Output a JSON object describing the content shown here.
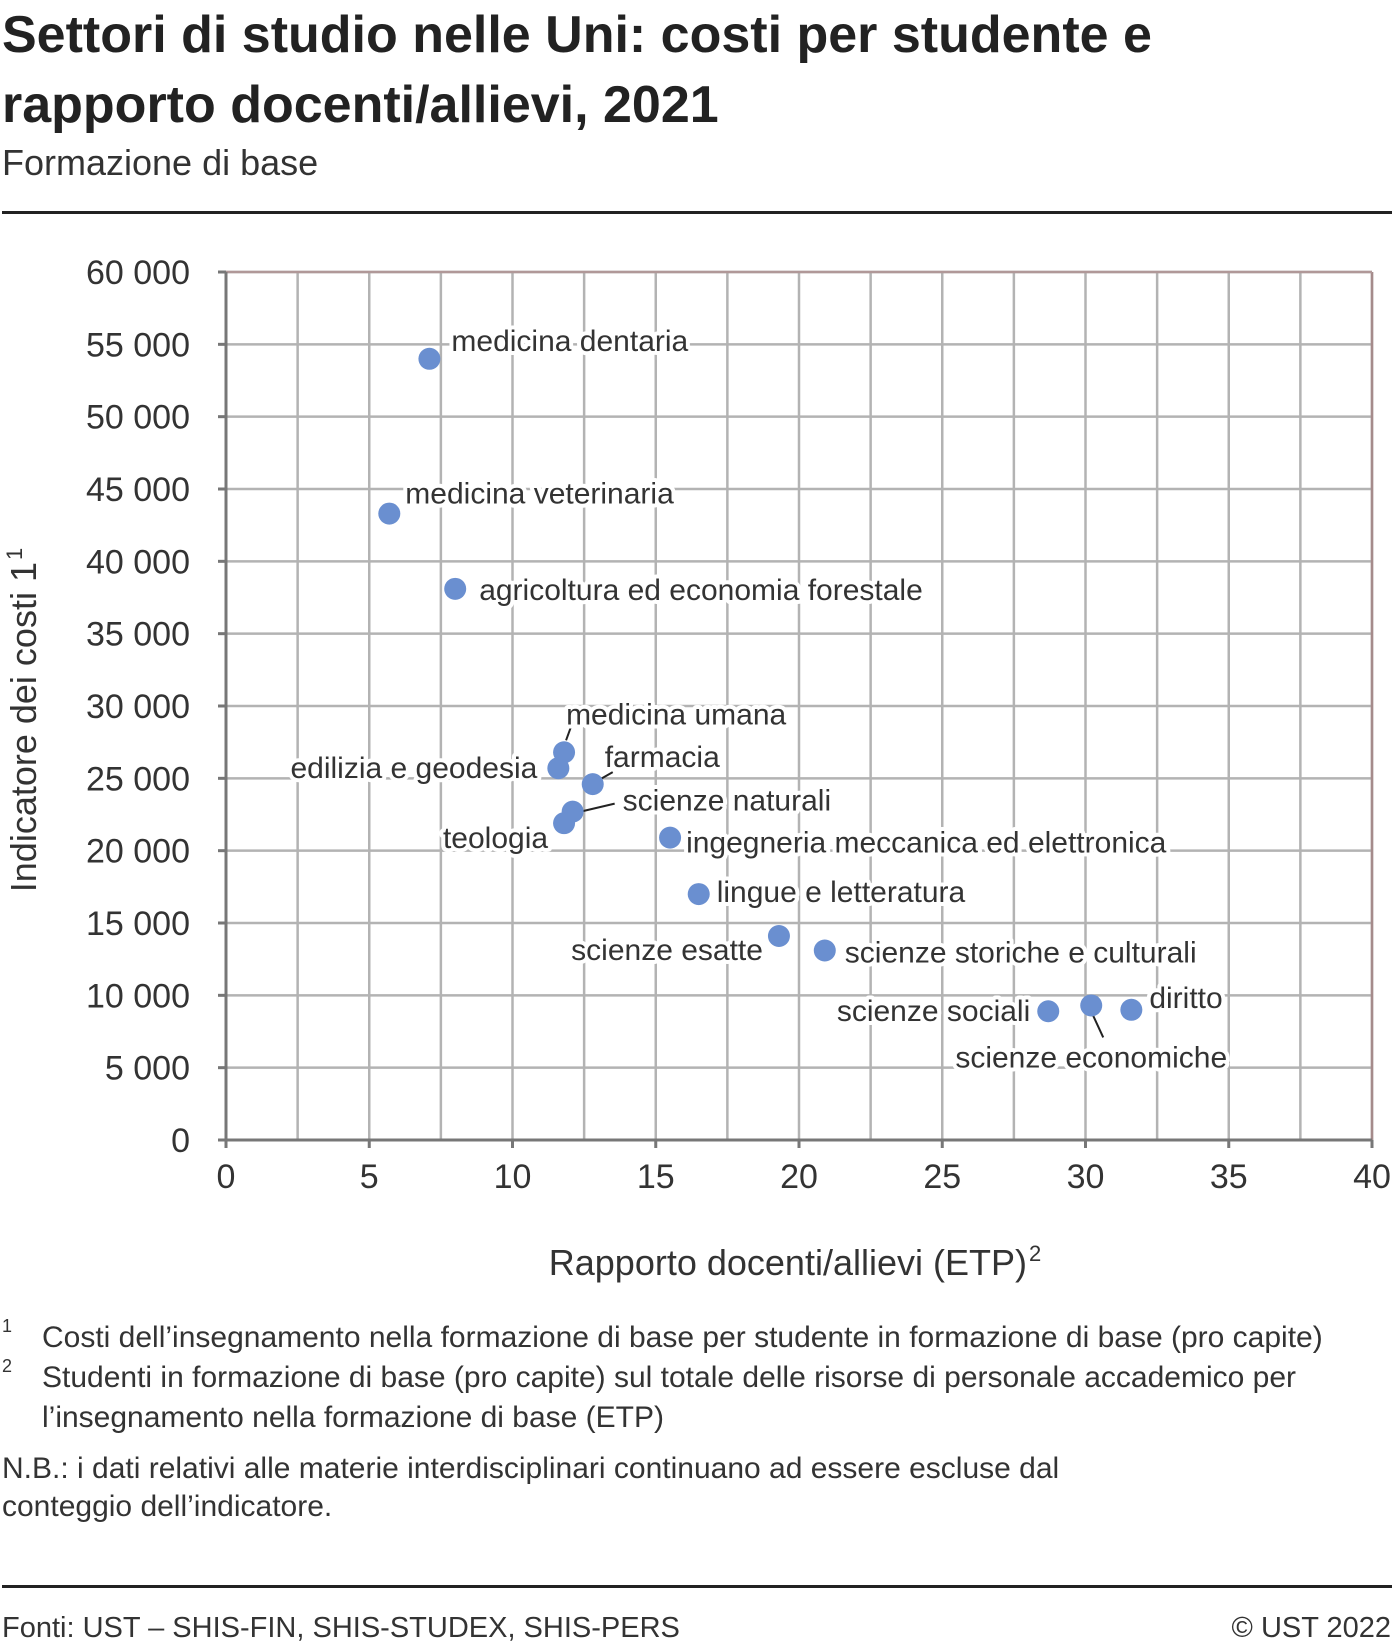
{
  "header": {
    "title": "Settori di studio nelle Uni: costi per studente e rapporto docenti/allievi, 2021",
    "subtitle": "Formazione di base"
  },
  "chart_data": {
    "type": "scatter",
    "title": "Settori di studio nelle Uni: costi per studente e rapporto docenti/allievi, 2021",
    "subtitle": "Formazione di base",
    "xlabel": "Rapporto docenti/allievi (ETP)",
    "xlabel_sup": "2",
    "ylabel": "Indicatore dei costi 1",
    "ylabel_sup": "1",
    "xlim": [
      0,
      40
    ],
    "ylim": [
      0,
      60000
    ],
    "xticks": [
      0,
      5,
      10,
      15,
      20,
      25,
      30,
      35,
      40
    ],
    "xtick_labels": [
      "0",
      "5",
      "10",
      "15",
      "20",
      "25",
      "30",
      "35",
      "40"
    ],
    "yticks": [
      0,
      5000,
      10000,
      15000,
      20000,
      25000,
      30000,
      35000,
      40000,
      45000,
      50000,
      55000,
      60000
    ],
    "ytick_labels": [
      "0",
      "5 000",
      "10 000",
      "15 000",
      "20 000",
      "25 000",
      "30 000",
      "35 000",
      "40 000",
      "45 000",
      "50 000",
      "55 000",
      "60 000"
    ],
    "grid": true,
    "marker_color": "#6a8fd0",
    "points": [
      {
        "label": "medicina dentaria",
        "x": 7.1,
        "y": 54000
      },
      {
        "label": "medicina veterinaria",
        "x": 5.7,
        "y": 43300
      },
      {
        "label": "agricoltura ed economia forestale",
        "x": 8.0,
        "y": 38100
      },
      {
        "label": "medicina umana",
        "x": 11.8,
        "y": 26800
      },
      {
        "label": "edilizia e geodesia",
        "x": 11.6,
        "y": 25700
      },
      {
        "label": "farmacia",
        "x": 12.8,
        "y": 24600
      },
      {
        "label": "scienze naturali",
        "x": 12.1,
        "y": 22700
      },
      {
        "label": "teologia",
        "x": 11.8,
        "y": 21900
      },
      {
        "label": "ingegneria meccanica ed elettronica",
        "x": 15.5,
        "y": 20900
      },
      {
        "label": "lingue e letteratura",
        "x": 16.5,
        "y": 17000
      },
      {
        "label": "scienze esatte",
        "x": 19.3,
        "y": 14100
      },
      {
        "label": "scienze storiche e culturali",
        "x": 20.9,
        "y": 13100
      },
      {
        "label": "scienze sociali",
        "x": 28.7,
        "y": 8900
      },
      {
        "label": "scienze economiche",
        "x": 30.2,
        "y": 9300
      },
      {
        "label": "diritto",
        "x": 31.6,
        "y": 9000
      }
    ]
  },
  "footnotes": [
    {
      "mark": "1",
      "text": "Costi dell’insegnamento nella formazione di base per studente in formazione di base (pro capite)"
    },
    {
      "mark": "2",
      "text": "Studenti in formazione di base (pro capite) sul totale delle risorse di personale accademico per l’insegnamento nella formazione di base (ETP)"
    }
  ],
  "note": "N.B.: i dati relativi alle materie interdisciplinari continuano ad essere escluse dal conteggio dell’indicatore.",
  "footer": {
    "source": "Fonti: UST – SHIS-FIN, SHIS-STUDEX, SHIS-PERS",
    "copyright": "© UST 2022"
  }
}
